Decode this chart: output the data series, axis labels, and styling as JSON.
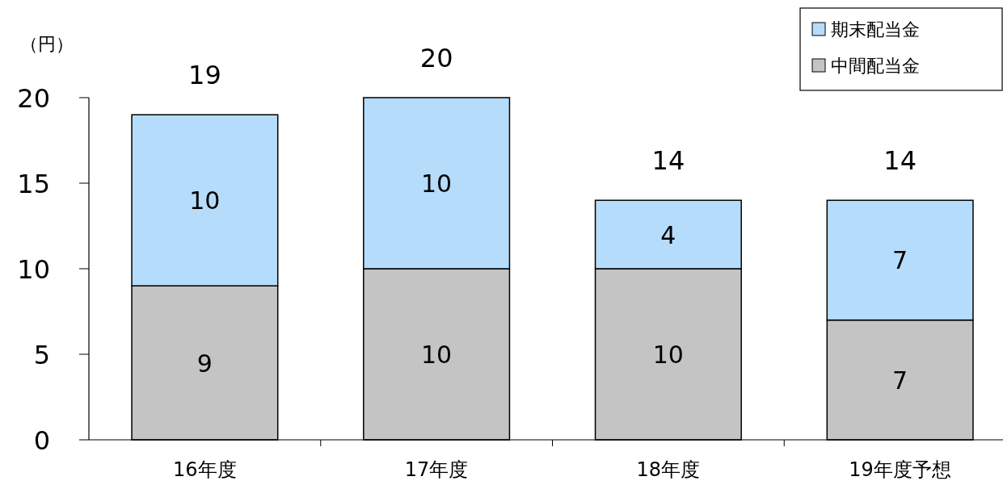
{
  "chart_data": {
    "type": "bar",
    "stacked": true,
    "ylabel": "（円）",
    "categories": [
      "16年度",
      "17年度",
      "18年度",
      "19年度予想"
    ],
    "series": [
      {
        "name": "中間配当金",
        "color": "#c4c4c4",
        "values": [
          9,
          10,
          10,
          7
        ]
      },
      {
        "name": "期末配当金",
        "color": "#b6dcfb",
        "values": [
          10,
          10,
          4,
          7
        ]
      }
    ],
    "totals": [
      "19",
      "20",
      "14",
      "14"
    ],
    "data_labels": true,
    "ylim": [
      0,
      20
    ],
    "yticks": [
      0,
      5,
      10,
      15,
      20
    ],
    "grid": false,
    "legend": "top right"
  }
}
